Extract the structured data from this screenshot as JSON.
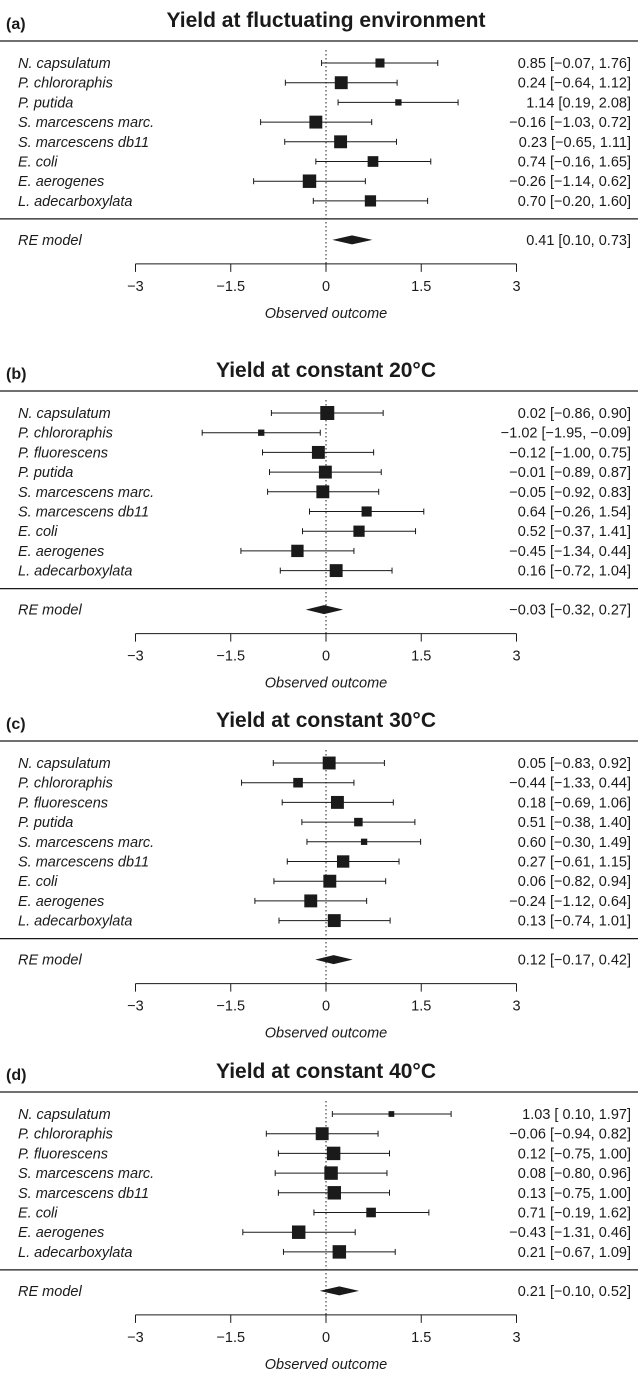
{
  "x_axis": {
    "ticks": [
      -3,
      -1.5,
      0,
      1.5,
      3
    ],
    "tick_labels": [
      "−3",
      "−1.5",
      "0",
      "1.5",
      "3"
    ],
    "title": "Observed outcome"
  },
  "summary_label": "RE model",
  "chart_data": [
    {
      "type": "forest",
      "panel": "(a)",
      "title": "Yield at fluctuating environment",
      "xlim": [
        -3,
        3
      ],
      "studies": [
        {
          "label": "N. capsulatum",
          "estimate": 0.85,
          "ci": [
            -0.07,
            1.76
          ],
          "text": "0.85 [−0.07, 1.76]",
          "weight": 0.55
        },
        {
          "label": "P. chlororaphis",
          "estimate": 0.24,
          "ci": [
            -0.64,
            1.12
          ],
          "text": "0.24 [−0.64, 1.12]",
          "weight": 0.9
        },
        {
          "label": "P. putida",
          "estimate": 1.14,
          "ci": [
            0.19,
            2.08
          ],
          "text": "1.14 [0.19, 2.08]",
          "weight": 0.3
        },
        {
          "label": "S. marcescens marc.",
          "estimate": -0.16,
          "ci": [
            -1.03,
            0.72
          ],
          "text": "−0.16 [−1.03, 0.72]",
          "weight": 0.9
        },
        {
          "label": "S. marcescens db11",
          "estimate": 0.23,
          "ci": [
            -0.65,
            1.11
          ],
          "text": "0.23 [−0.65, 1.11]",
          "weight": 0.9
        },
        {
          "label": "E. coli",
          "estimate": 0.74,
          "ci": [
            -0.16,
            1.65
          ],
          "text": "0.74 [−0.16, 1.65]",
          "weight": 0.7
        },
        {
          "label": "E. aerogenes",
          "estimate": -0.26,
          "ci": [
            -1.14,
            0.62
          ],
          "text": "−0.26 [−1.14, 0.62]",
          "weight": 0.95
        },
        {
          "label": "L. adecarboxylata",
          "estimate": 0.7,
          "ci": [
            -0.2,
            1.6
          ],
          "text": "0.70 [−0.20, 1.60]",
          "weight": 0.75
        }
      ],
      "summary": {
        "estimate": 0.41,
        "ci": [
          0.1,
          0.73
        ],
        "text": "0.41 [0.10, 0.73]"
      }
    },
    {
      "type": "forest",
      "panel": "(b)",
      "title": "Yield at constant 20°C",
      "xlim": [
        -3,
        3
      ],
      "studies": [
        {
          "label": "N. capsulatum",
          "estimate": 0.02,
          "ci": [
            -0.86,
            0.9
          ],
          "text": "0.02 [−0.86, 0.90]",
          "weight": 1.0
        },
        {
          "label": "P. chlororaphis",
          "estimate": -1.02,
          "ci": [
            -1.95,
            -0.09
          ],
          "text": "−1.02 [−1.95, −0.09]",
          "weight": 0.3
        },
        {
          "label": "P. fluorescens",
          "estimate": -0.12,
          "ci": [
            -1.0,
            0.75
          ],
          "text": "−0.12 [−1.00, 0.75]",
          "weight": 0.9
        },
        {
          "label": "P. putida",
          "estimate": -0.01,
          "ci": [
            -0.89,
            0.87
          ],
          "text": "−0.01 [−0.89, 0.87]",
          "weight": 0.9
        },
        {
          "label": "S. marcescens marc.",
          "estimate": -0.05,
          "ci": [
            -0.92,
            0.83
          ],
          "text": "−0.05 [−0.92, 0.83]",
          "weight": 0.9
        },
        {
          "label": "S. marcescens db11",
          "estimate": 0.64,
          "ci": [
            -0.26,
            1.54
          ],
          "text": "0.64 [−0.26, 1.54]",
          "weight": 0.65
        },
        {
          "label": "E. coli",
          "estimate": 0.52,
          "ci": [
            -0.37,
            1.41
          ],
          "text": "0.52 [−0.37, 1.41]",
          "weight": 0.75
        },
        {
          "label": "E. aerogenes",
          "estimate": -0.45,
          "ci": [
            -1.34,
            0.44
          ],
          "text": "−0.45 [−1.34, 0.44]",
          "weight": 0.85
        },
        {
          "label": "L. adecarboxylata",
          "estimate": 0.16,
          "ci": [
            -0.72,
            1.04
          ],
          "text": "0.16 [−0.72, 1.04]",
          "weight": 0.9
        }
      ],
      "summary": {
        "estimate": -0.03,
        "ci": [
          -0.32,
          0.27
        ],
        "text": "−0.03 [−0.32, 0.27]"
      }
    },
    {
      "type": "forest",
      "panel": "(c)",
      "title": "Yield at constant 30°C",
      "xlim": [
        -3,
        3
      ],
      "studies": [
        {
          "label": "N. capsulatum",
          "estimate": 0.05,
          "ci": [
            -0.83,
            0.92
          ],
          "text": "0.05 [−0.83, 0.92]",
          "weight": 0.9
        },
        {
          "label": "P. chlororaphis",
          "estimate": -0.44,
          "ci": [
            -1.33,
            0.44
          ],
          "text": "−0.44 [−1.33, 0.44]",
          "weight": 0.6
        },
        {
          "label": "P. fluorescens",
          "estimate": 0.18,
          "ci": [
            -0.69,
            1.06
          ],
          "text": "0.18 [−0.69, 1.06]",
          "weight": 0.9
        },
        {
          "label": "P. putida",
          "estimate": 0.51,
          "ci": [
            -0.38,
            1.4
          ],
          "text": "0.51 [−0.38, 1.40]",
          "weight": 0.5
        },
        {
          "label": "S. marcescens marc.",
          "estimate": 0.6,
          "ci": [
            -0.3,
            1.49
          ],
          "text": "0.60 [−0.30, 1.49]",
          "weight": 0.3
        },
        {
          "label": "S. marcescens db11",
          "estimate": 0.27,
          "ci": [
            -0.61,
            1.15
          ],
          "text": "0.27 [−0.61, 1.15]",
          "weight": 0.85
        },
        {
          "label": "E. coli",
          "estimate": 0.06,
          "ci": [
            -0.82,
            0.94
          ],
          "text": "0.06 [−0.82, 0.94]",
          "weight": 0.9
        },
        {
          "label": "E. aerogenes",
          "estimate": -0.24,
          "ci": [
            -1.12,
            0.64
          ],
          "text": "−0.24 [−1.12, 0.64]",
          "weight": 0.9
        },
        {
          "label": "L. adecarboxylata",
          "estimate": 0.13,
          "ci": [
            -0.74,
            1.01
          ],
          "text": "0.13 [−0.74, 1.01]",
          "weight": 0.9
        }
      ],
      "summary": {
        "estimate": 0.12,
        "ci": [
          -0.17,
          0.42
        ],
        "text": "0.12 [−0.17, 0.42]"
      }
    },
    {
      "type": "forest",
      "panel": "(d)",
      "title": "Yield at constant 40°C",
      "xlim": [
        -3,
        3
      ],
      "studies": [
        {
          "label": "N. capsulatum",
          "estimate": 1.03,
          "ci": [
            0.1,
            1.97
          ],
          "text": "1.03 [ 0.10, 1.97]",
          "weight": 0.25
        },
        {
          "label": "P. chlororaphis",
          "estimate": -0.06,
          "ci": [
            -0.94,
            0.82
          ],
          "text": "−0.06 [−0.94, 0.82]",
          "weight": 0.9
        },
        {
          "label": "P. fluorescens",
          "estimate": 0.12,
          "ci": [
            -0.75,
            1.0
          ],
          "text": "0.12 [−0.75, 1.00]",
          "weight": 0.95
        },
        {
          "label": "S. marcescens marc.",
          "estimate": 0.08,
          "ci": [
            -0.8,
            0.96
          ],
          "text": "0.08 [−0.80, 0.96]",
          "weight": 0.95
        },
        {
          "label": "S. marcescens db11",
          "estimate": 0.13,
          "ci": [
            -0.75,
            1.0
          ],
          "text": "0.13 [−0.75, 1.00]",
          "weight": 0.95
        },
        {
          "label": "E. coli",
          "estimate": 0.71,
          "ci": [
            -0.19,
            1.62
          ],
          "text": "0.71 [−0.19, 1.62]",
          "weight": 0.6
        },
        {
          "label": "E. aerogenes",
          "estimate": -0.43,
          "ci": [
            -1.31,
            0.46
          ],
          "text": "−0.43 [−1.31, 0.46]",
          "weight": 0.95
        },
        {
          "label": "L. adecarboxylata",
          "estimate": 0.21,
          "ci": [
            -0.67,
            1.09
          ],
          "text": "0.21 [−0.67, 1.09]",
          "weight": 0.95
        }
      ],
      "summary": {
        "estimate": 0.21,
        "ci": [
          -0.1,
          0.52
        ],
        "text": "0.21 [−0.10, 0.52]"
      }
    }
  ]
}
